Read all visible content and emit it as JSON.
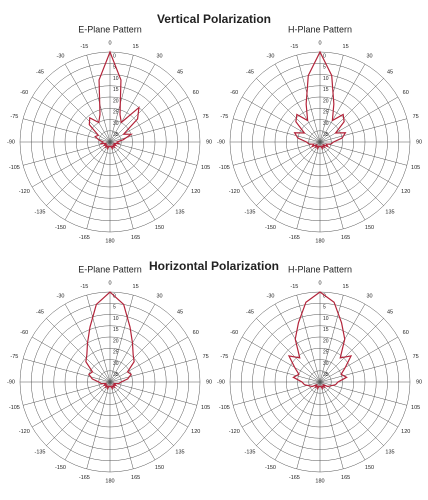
{
  "headings": [
    "Vertical Polarization",
    "Horizontal Polarization"
  ],
  "chart_data": [
    {
      "type": "polar",
      "title": "E-Plane Pattern",
      "color": "#b3243a",
      "theta": [
        -180,
        -170,
        -160,
        -150,
        -140,
        -130,
        -120,
        -110,
        -100,
        -90,
        -80,
        -70,
        -60,
        -50,
        -40,
        -30,
        -20,
        -10,
        0,
        10,
        20,
        30,
        40,
        50,
        60,
        70,
        80,
        90,
        100,
        110,
        120,
        130,
        140,
        150,
        160,
        170,
        180
      ],
      "values": [
        38,
        38,
        37,
        38,
        37,
        38,
        37,
        38,
        36,
        37,
        35,
        33,
        34,
        28,
        26,
        30,
        27,
        12,
        0,
        12,
        27,
        30,
        20,
        24,
        33,
        30,
        34,
        37,
        36,
        38,
        37,
        38,
        37,
        38,
        37,
        38,
        38
      ],
      "rlim": [
        40,
        0
      ],
      "rticks": [
        0,
        5,
        10,
        15,
        20,
        25,
        30,
        35
      ],
      "thetaticks": [
        0,
        15,
        30,
        45,
        60,
        75,
        90,
        105,
        120,
        135,
        150,
        165,
        180,
        -165,
        -150,
        -135,
        -120,
        -105,
        -90,
        -75,
        -60,
        -45,
        -30,
        -15
      ]
    },
    {
      "type": "polar",
      "title": "H-Plane Pattern",
      "color": "#b3243a",
      "theta": [
        -180,
        -170,
        -160,
        -150,
        -140,
        -130,
        -120,
        -110,
        -100,
        -90,
        -80,
        -70,
        -60,
        -50,
        -40,
        -30,
        -20,
        -10,
        0,
        10,
        20,
        30,
        40,
        50,
        60,
        70,
        80,
        90,
        100,
        110,
        120,
        130,
        140,
        150,
        160,
        170,
        180
      ],
      "values": [
        38,
        38,
        37,
        38,
        37,
        38,
        36,
        37,
        35,
        34,
        30,
        28,
        32,
        26,
        24,
        29,
        22,
        10,
        0,
        10,
        22,
        29,
        24,
        26,
        32,
        28,
        30,
        34,
        35,
        37,
        36,
        38,
        37,
        38,
        37,
        38,
        38
      ],
      "rlim": [
        40,
        0
      ],
      "rticks": [
        0,
        5,
        10,
        15,
        20,
        25,
        30,
        35
      ],
      "thetaticks": [
        0,
        15,
        30,
        45,
        60,
        75,
        90,
        105,
        120,
        135,
        150,
        165,
        180,
        -165,
        -150,
        -135,
        -120,
        -105,
        -90,
        -75,
        -60,
        -45,
        -30,
        -15
      ]
    },
    {
      "type": "polar",
      "title": "E-Plane Pattern",
      "color": "#b3243a",
      "theta": [
        -180,
        -170,
        -160,
        -150,
        -140,
        -130,
        -120,
        -110,
        -100,
        -90,
        -80,
        -70,
        -60,
        -50,
        -40,
        -30,
        -20,
        -10,
        0,
        10,
        20,
        30,
        40,
        50,
        60,
        70,
        80,
        90,
        100,
        110,
        120,
        130,
        140,
        150,
        160,
        170,
        180
      ],
      "values": [
        38,
        38,
        37,
        38,
        37,
        38,
        37,
        38,
        36,
        35,
        32,
        30,
        31,
        26,
        24,
        20,
        14,
        5,
        0,
        5,
        14,
        20,
        24,
        26,
        31,
        30,
        32,
        35,
        36,
        38,
        37,
        38,
        37,
        38,
        37,
        38,
        38
      ],
      "rlim": [
        40,
        0
      ],
      "rticks": [
        0,
        5,
        10,
        15,
        20,
        25,
        30,
        35
      ],
      "thetaticks": [
        0,
        15,
        30,
        45,
        60,
        75,
        90,
        105,
        120,
        135,
        150,
        165,
        180,
        -165,
        -150,
        -135,
        -120,
        -105,
        -90,
        -75,
        -60,
        -45,
        -30,
        -15
      ]
    },
    {
      "type": "polar",
      "title": "H-Plane Pattern",
      "color": "#b3243a",
      "theta": [
        -180,
        -170,
        -160,
        -150,
        -140,
        -130,
        -120,
        -110,
        -100,
        -90,
        -80,
        -70,
        -60,
        -50,
        -40,
        -30,
        -20,
        -10,
        0,
        10,
        20,
        30,
        40,
        50,
        60,
        70,
        80,
        90,
        100,
        110,
        120,
        130,
        140,
        150,
        160,
        170,
        180
      ],
      "values": [
        38,
        38,
        37,
        38,
        37,
        38,
        36,
        35,
        33,
        32,
        28,
        30,
        27,
        22,
        26,
        18,
        12,
        4,
        0,
        4,
        12,
        18,
        26,
        22,
        27,
        30,
        28,
        32,
        33,
        35,
        36,
        38,
        37,
        38,
        37,
        38,
        38
      ],
      "rlim": [
        40,
        0
      ],
      "rticks": [
        0,
        5,
        10,
        15,
        20,
        25,
        30,
        35
      ],
      "thetaticks": [
        0,
        15,
        30,
        45,
        60,
        75,
        90,
        105,
        120,
        135,
        150,
        165,
        180,
        -165,
        -150,
        -135,
        -120,
        -105,
        -90,
        -75,
        -60,
        -45,
        -30,
        -15
      ]
    }
  ]
}
